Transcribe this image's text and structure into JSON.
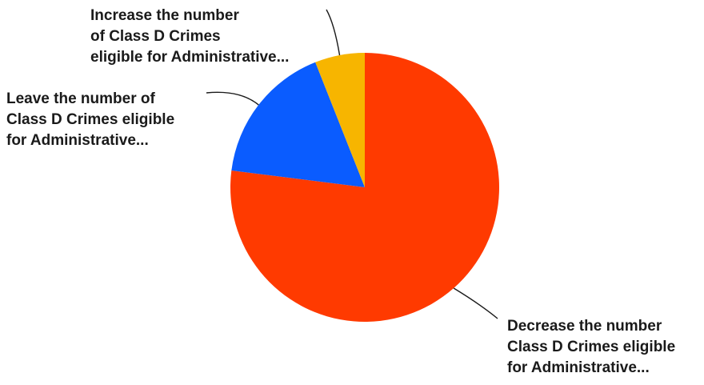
{
  "chart_data": {
    "type": "pie",
    "title": "",
    "slices": [
      {
        "label_lines": [
          "Decrease the number",
          "Class D Crimes eligible",
          "for Administrative..."
        ],
        "value": 77,
        "color": "#ff3a00"
      },
      {
        "label_lines": [
          "Leave the number of",
          "Class D Crimes eligible",
          "for Administrative..."
        ],
        "value": 17,
        "color": "#0a5cff"
      },
      {
        "label_lines": [
          "Increase the number",
          "of Class D Crimes",
          "eligible for Administrative..."
        ],
        "value": 6,
        "color": "#f7b500"
      }
    ]
  }
}
